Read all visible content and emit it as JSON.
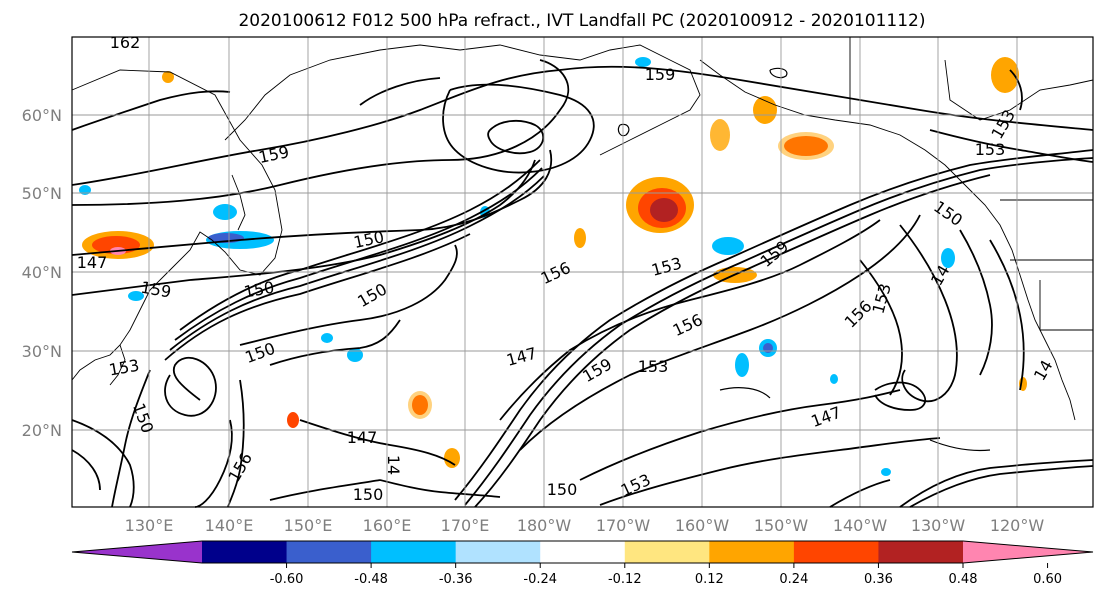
{
  "title": "2020100612 F012 500 hPa refract., IVT Landfall PC (2020100912 - 2020101112)",
  "map": {
    "lat_labels": [
      "60°N",
      "50°N",
      "40°N",
      "30°N",
      "20°N"
    ],
    "lon_labels": [
      "130°E",
      "140°E",
      "150°E",
      "160°E",
      "170°E",
      "180°W",
      "170°W",
      "160°W",
      "150°W",
      "140°W",
      "130°W",
      "120°W"
    ],
    "contour_labels": [
      "162",
      "159",
      "159",
      "153",
      "150",
      "150",
      "156",
      "153",
      "159",
      "150",
      "150",
      "156",
      "147",
      "153",
      "159",
      "150",
      "147",
      "153",
      "156",
      "150",
      "153",
      "147",
      "150",
      "150",
      "153",
      "147",
      "14",
      "14",
      "159",
      "156",
      "153",
      "14"
    ]
  },
  "colorbar": {
    "tick_labels": [
      "-0.60",
      "-0.48",
      "-0.36",
      "-0.24",
      "-0.12",
      "0.12",
      "0.24",
      "0.36",
      "0.48",
      "0.60"
    ],
    "colors": [
      "#9933cc",
      "#00008b",
      "#3a5fcd",
      "#00bfff",
      "#b0e2ff",
      "#ffffff",
      "#ffe680",
      "#ffa500",
      "#ff4500",
      "#b22222",
      "#ff85b0"
    ],
    "extend": "both"
  }
}
